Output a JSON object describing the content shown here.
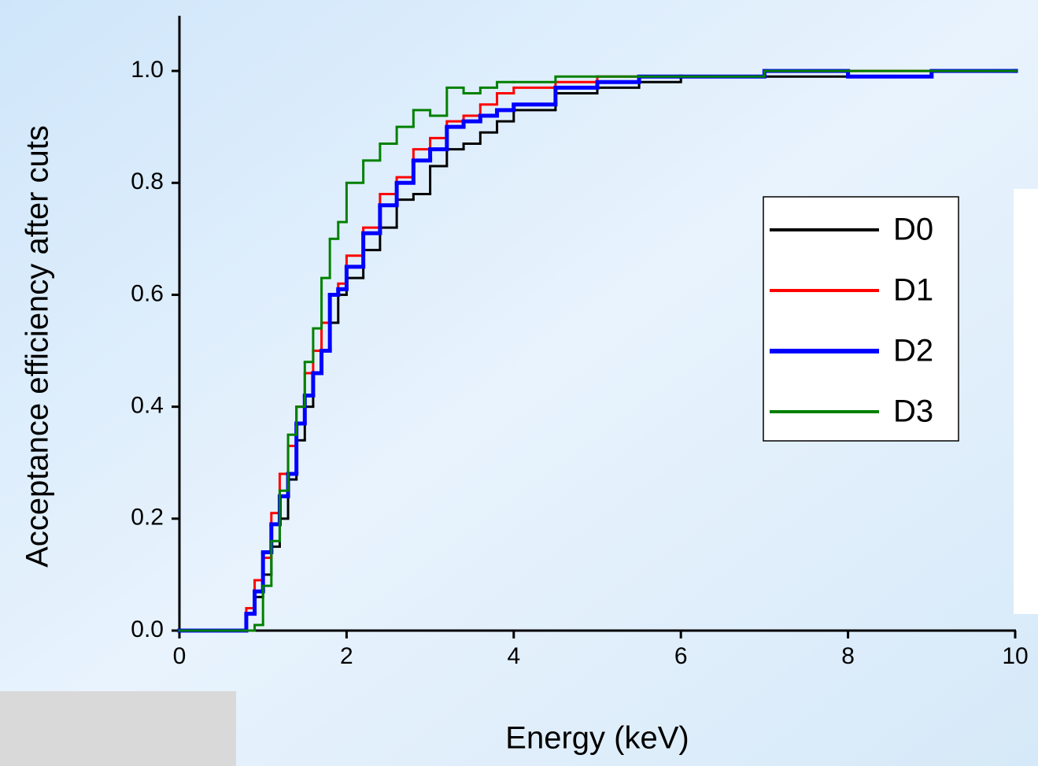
{
  "chart_data": {
    "type": "step",
    "x_label": "Energy (keV)",
    "y_label": "Acceptance efficiency after cuts",
    "x": [
      0,
      0.6,
      0.8,
      0.9,
      1.0,
      1.1,
      1.2,
      1.3,
      1.4,
      1.5,
      1.6,
      1.7,
      1.8,
      1.9,
      2.0,
      2.2,
      2.4,
      2.6,
      2.8,
      3.0,
      3.2,
      3.4,
      3.6,
      3.8,
      4.0,
      4.5,
      5.0,
      5.5,
      6.0,
      7.0,
      8.0,
      9.0,
      10.0
    ],
    "series": [
      {
        "name": "D0",
        "color": "#000000",
        "line_width": 3,
        "values": [
          0,
          0,
          0.03,
          0.06,
          0.1,
          0.15,
          0.2,
          0.27,
          0.34,
          0.4,
          0.46,
          0.5,
          0.55,
          0.6,
          0.63,
          0.68,
          0.72,
          0.77,
          0.78,
          0.83,
          0.86,
          0.87,
          0.89,
          0.91,
          0.93,
          0.96,
          0.97,
          0.98,
          0.99,
          0.99,
          0.99,
          1.0,
          1.0
        ]
      },
      {
        "name": "D1",
        "color": "#ff0000",
        "line_width": 3,
        "values": [
          0,
          0,
          0.04,
          0.09,
          0.13,
          0.21,
          0.28,
          0.33,
          0.4,
          0.46,
          0.5,
          0.55,
          0.6,
          0.62,
          0.67,
          0.72,
          0.78,
          0.81,
          0.86,
          0.88,
          0.91,
          0.92,
          0.94,
          0.96,
          0.97,
          0.98,
          0.99,
          0.99,
          0.99,
          1.0,
          1.0,
          1.0,
          1.0
        ]
      },
      {
        "name": "D2",
        "color": "#0000ff",
        "line_width": 5,
        "values": [
          0,
          0,
          0.03,
          0.07,
          0.14,
          0.19,
          0.24,
          0.28,
          0.37,
          0.42,
          0.46,
          0.5,
          0.6,
          0.61,
          0.65,
          0.71,
          0.76,
          0.8,
          0.84,
          0.86,
          0.9,
          0.91,
          0.92,
          0.93,
          0.94,
          0.97,
          0.98,
          0.99,
          0.99,
          1.0,
          0.99,
          1.0,
          1.0
        ]
      },
      {
        "name": "D3",
        "color": "#008000",
        "line_width": 3,
        "values": [
          0,
          0,
          0,
          0.01,
          0.08,
          0.16,
          0.25,
          0.35,
          0.4,
          0.48,
          0.54,
          0.63,
          0.7,
          0.73,
          0.8,
          0.84,
          0.87,
          0.9,
          0.93,
          0.92,
          0.97,
          0.96,
          0.97,
          0.98,
          0.98,
          0.99,
          0.99,
          0.99,
          0.99,
          1.0,
          1.0,
          1.0,
          1.0
        ]
      }
    ],
    "xlim": [
      0,
      10
    ],
    "xticks": [
      0,
      2,
      4,
      6,
      8,
      10
    ],
    "ylim": [
      0,
      1.1
    ],
    "yticks": [
      {
        "value": 0,
        "label": "0.0"
      },
      {
        "value": 0.2,
        "label": "0.2"
      },
      {
        "value": 0.4,
        "label": "0.4"
      },
      {
        "value": 0.6,
        "label": "0.6"
      },
      {
        "value": 0.8,
        "label": "0.8"
      },
      {
        "value": 1.0,
        "label": "1.0"
      }
    ],
    "legend": "right"
  }
}
